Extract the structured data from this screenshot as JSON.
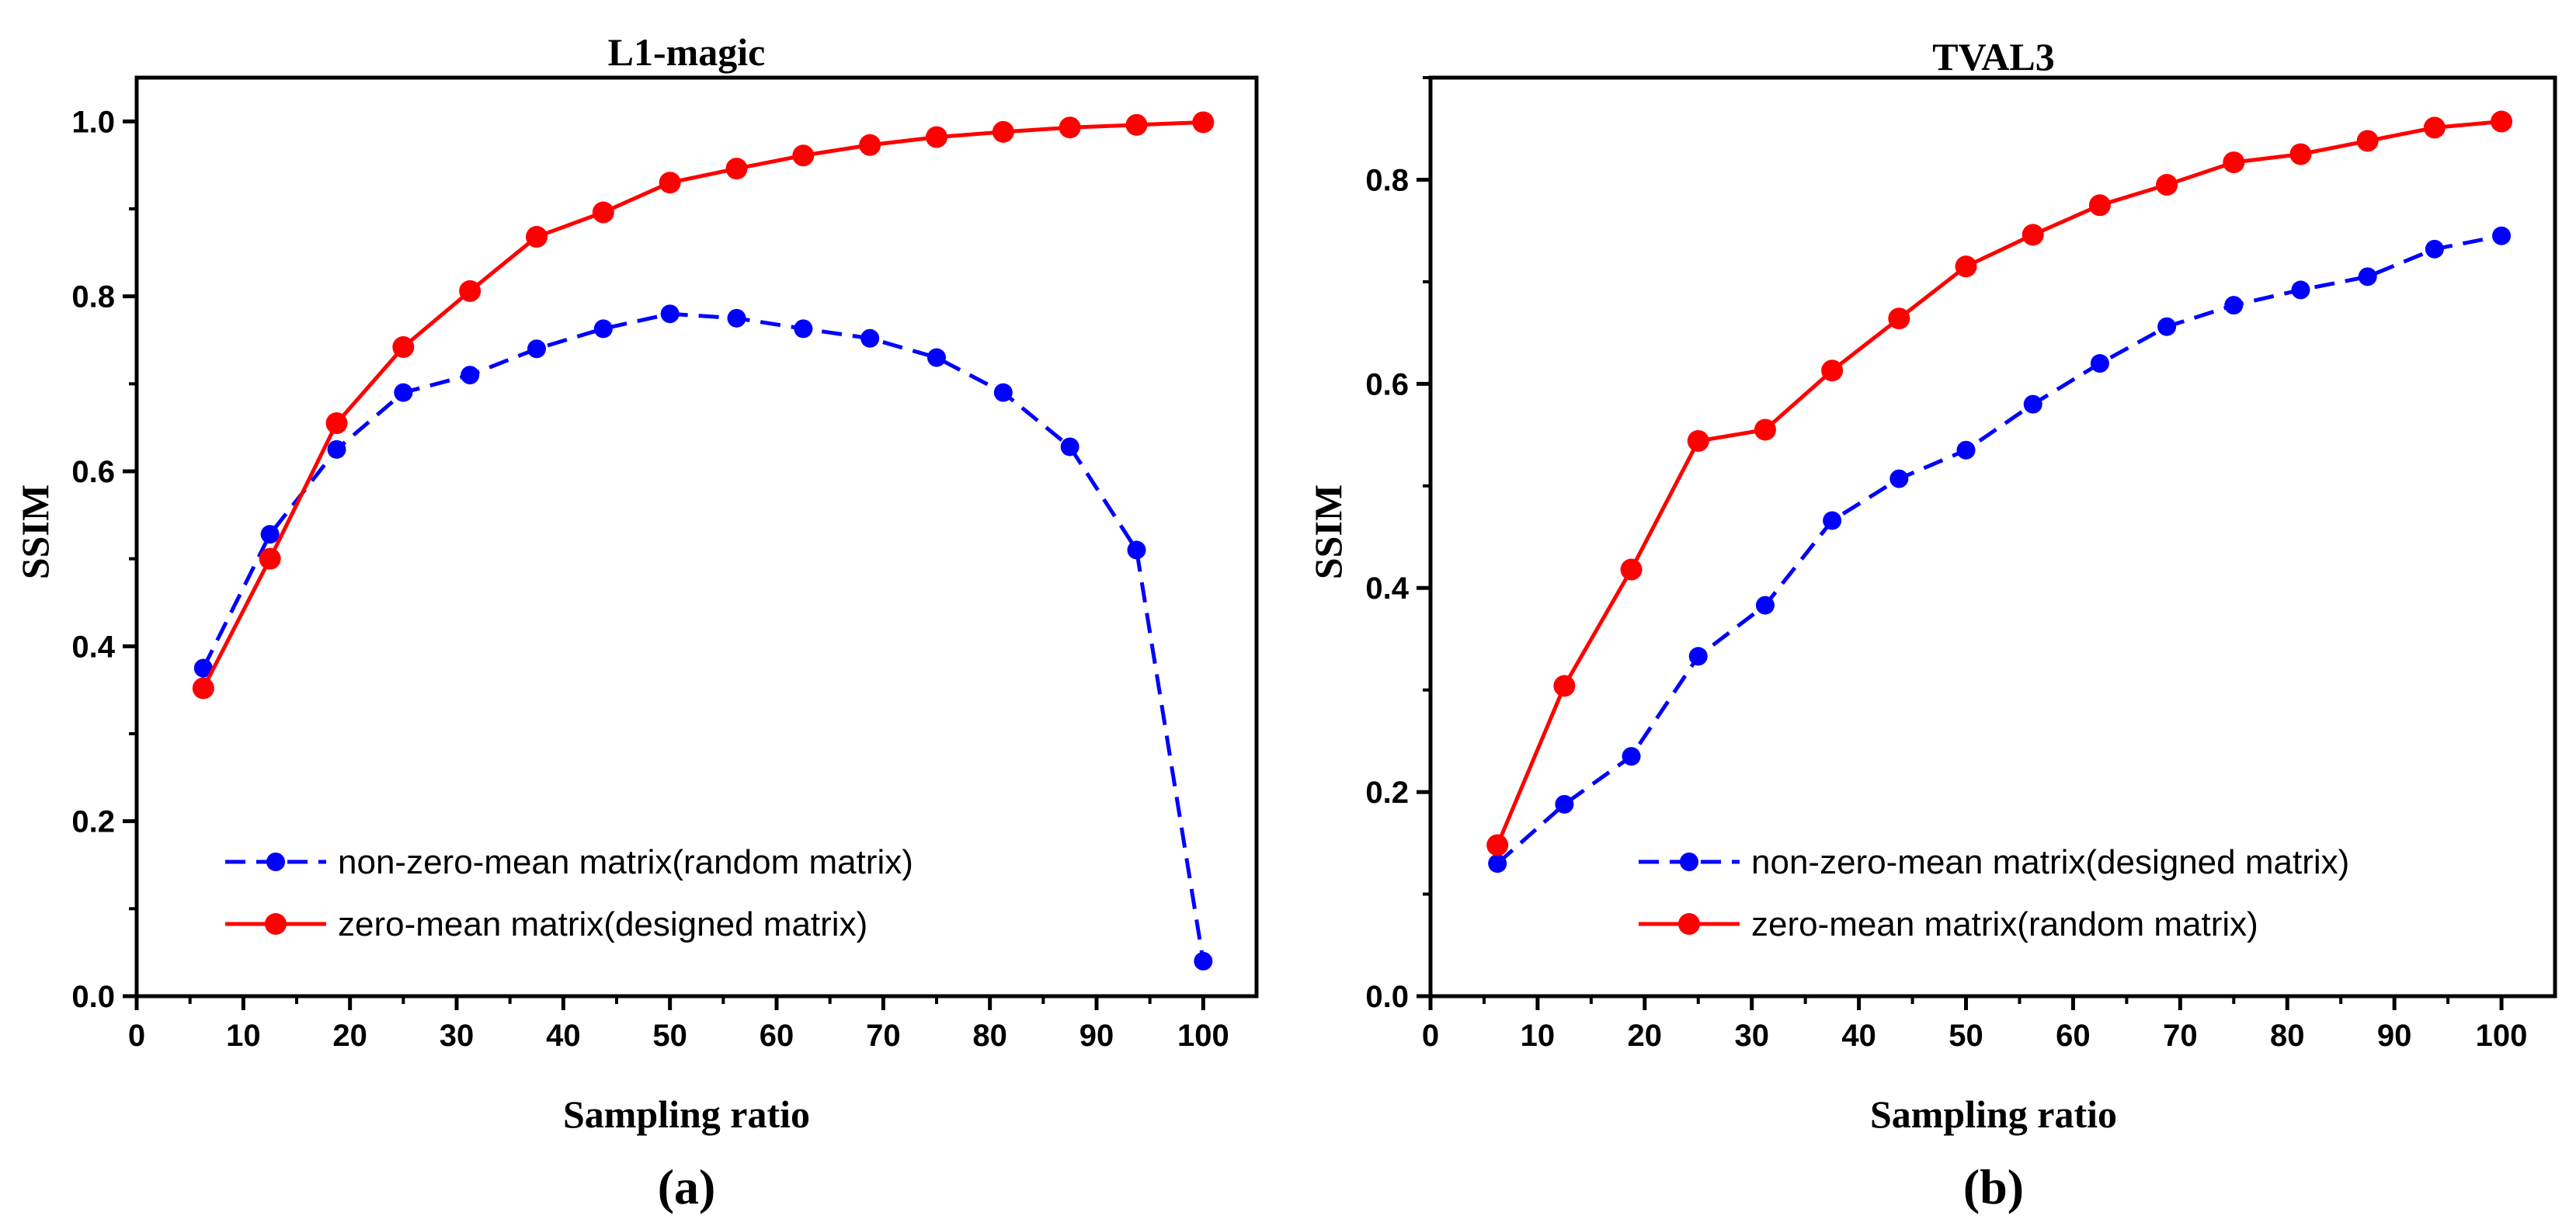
{
  "figure": {
    "panel_labels": [
      "(a)",
      "(b)"
    ]
  },
  "colors": {
    "non_zero_mean": "#0000ff",
    "zero_mean": "#ff0000",
    "axis": "#000000"
  },
  "chart_data": [
    {
      "type": "line",
      "title": "L1-magic",
      "xlabel": "Sampling ratio",
      "ylabel": "SSIM",
      "xlim": [
        0,
        105
      ],
      "ylim": [
        0,
        1.05
      ],
      "xticks": [
        0,
        10,
        20,
        30,
        40,
        50,
        60,
        70,
        80,
        90,
        100
      ],
      "yticks": [
        0.0,
        0.2,
        0.4,
        0.6,
        0.8,
        1.0
      ],
      "x": [
        6.25,
        12.5,
        18.75,
        25,
        31.25,
        37.5,
        43.75,
        50,
        56.25,
        62.5,
        68.75,
        75,
        81.25,
        87.5,
        93.75,
        100
      ],
      "legend_position": "bottom-left",
      "series": [
        {
          "name": "non-zero-mean matrix(random matrix)",
          "style": "dashed",
          "color": "#0000ff",
          "values": [
            0.375,
            0.528,
            0.625,
            0.69,
            0.71,
            0.74,
            0.763,
            0.78,
            0.775,
            0.763,
            0.752,
            0.73,
            0.69,
            0.628,
            0.51,
            0.04
          ]
        },
        {
          "name": "zero-mean matrix(designed matrix)",
          "style": "solid",
          "color": "#ff0000",
          "values": [
            0.352,
            0.5,
            0.655,
            0.742,
            0.806,
            0.868,
            0.896,
            0.93,
            0.946,
            0.961,
            0.973,
            0.982,
            0.988,
            0.993,
            0.996,
            0.999
          ]
        }
      ]
    },
    {
      "type": "line",
      "title": "TVAL3",
      "xlabel": "Sampling ratio",
      "ylabel": "SSIM",
      "xlim": [
        0,
        105
      ],
      "ylim": [
        0,
        0.9
      ],
      "xticks": [
        0,
        10,
        20,
        30,
        40,
        50,
        60,
        70,
        80,
        90,
        100
      ],
      "yticks": [
        0.0,
        0.2,
        0.4,
        0.6,
        0.8
      ],
      "x": [
        6.25,
        12.5,
        18.75,
        25,
        31.25,
        37.5,
        43.75,
        50,
        56.25,
        62.5,
        68.75,
        75,
        81.25,
        87.5,
        93.75,
        100
      ],
      "legend_position": "bottom-right",
      "series": [
        {
          "name": "non-zero-mean matrix(designed matrix)",
          "style": "dashed",
          "color": "#0000ff",
          "values": [
            0.13,
            0.188,
            0.235,
            0.333,
            0.383,
            0.466,
            0.507,
            0.535,
            0.58,
            0.62,
            0.656,
            0.677,
            0.692,
            0.705,
            0.732,
            0.745
          ]
        },
        {
          "name": "zero-mean matrix(random matrix)",
          "style": "solid",
          "color": "#ff0000",
          "values": [
            0.148,
            0.304,
            0.418,
            0.544,
            0.555,
            0.613,
            0.664,
            0.715,
            0.746,
            0.775,
            0.795,
            0.817,
            0.825,
            0.838,
            0.851,
            0.857
          ]
        }
      ]
    }
  ]
}
